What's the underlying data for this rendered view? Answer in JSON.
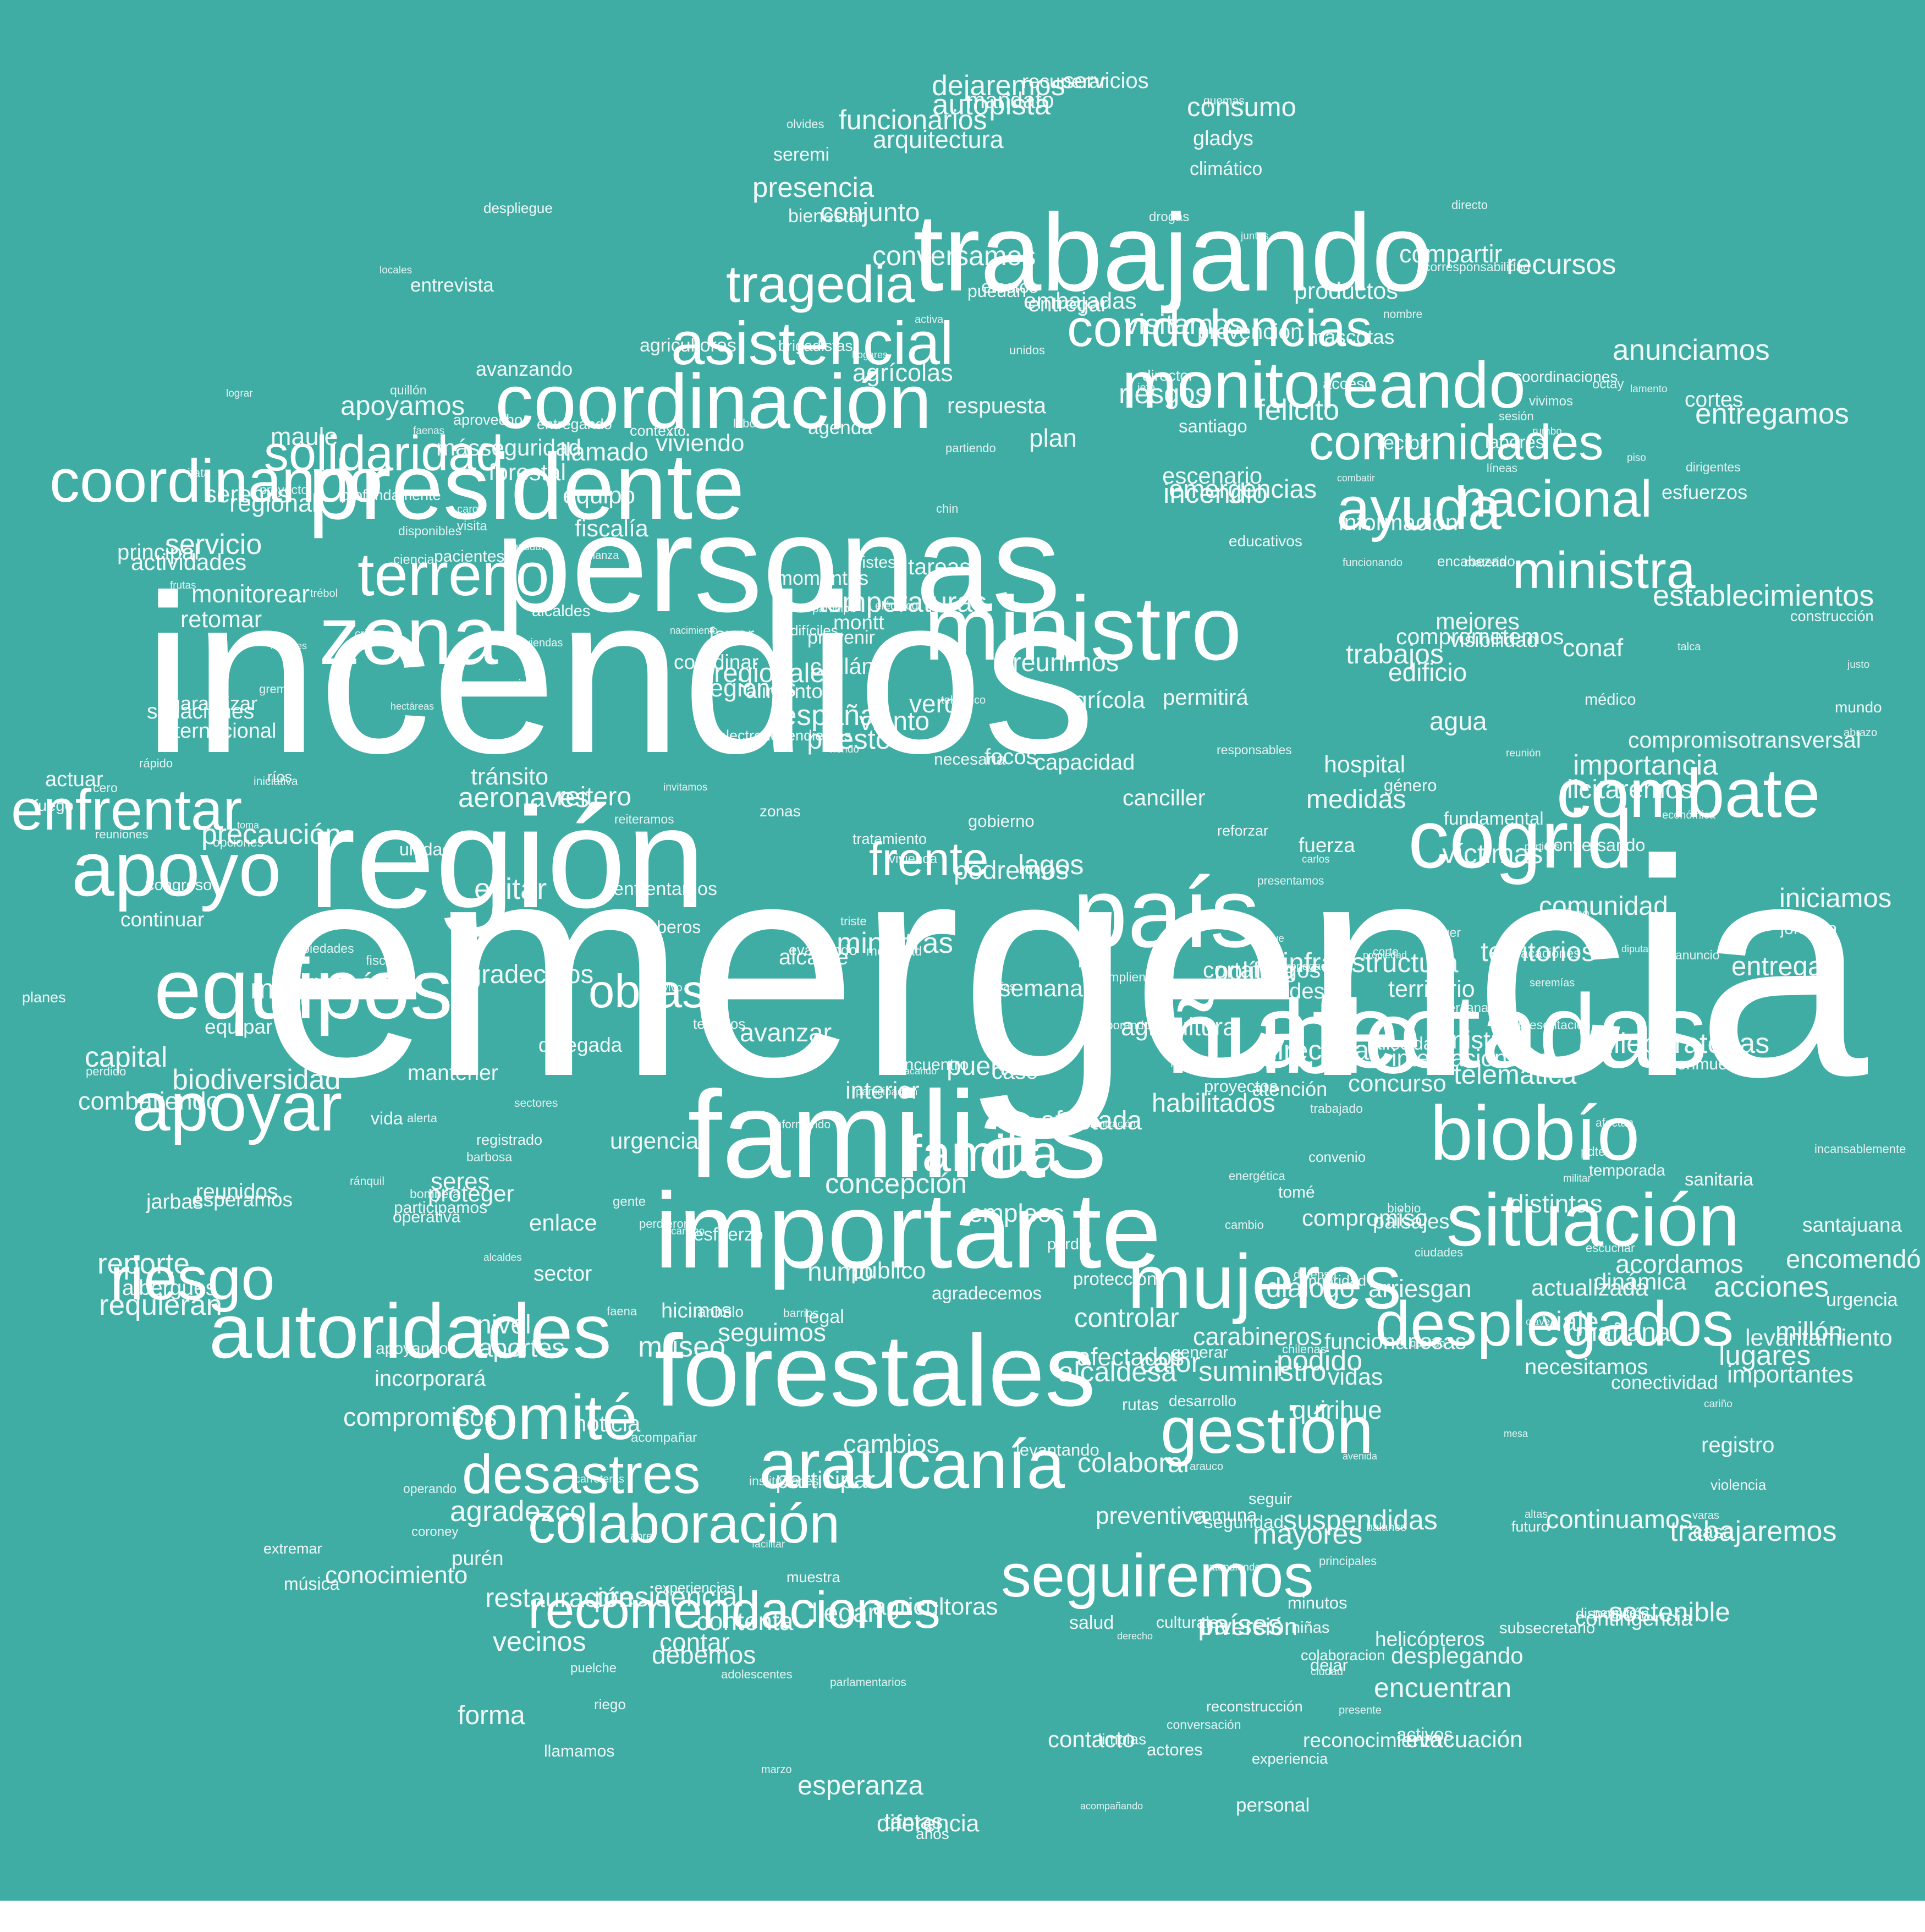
{
  "background_color": "#40ada5",
  "word_color": "#ffffff",
  "words": {
    "big": [
      "emergencia",
      "incendios",
      "personas",
      "región",
      "trabajando",
      "familias",
      "importante",
      "forestales",
      "afectadas",
      "ñuble",
      "país",
      "presidente",
      "ministro",
      "zona",
      "cogrid",
      "equipos",
      "apoyo",
      "autoridades",
      "coordinación",
      "mujeres",
      "situación",
      "biobío",
      "combate",
      "araucanía",
      "gestión",
      "comité",
      "desplegados",
      "seguiremos",
      "apoyar",
      "riesgo",
      "colaboración",
      "recomendaciones",
      "desastres",
      "terreno",
      "asistencial",
      "tragedia",
      "monitoreando",
      "condolencias",
      "comunidades",
      "nacional",
      "ministra",
      "coordinando",
      "enfrentar",
      "familia",
      "obras",
      "frente",
      "ayuda",
      "solidaridad"
    ],
    "medium": [
      "llamado",
      "reunimos",
      "ministros",
      "seguridad",
      "seguimos",
      "albergues",
      "maquinaria",
      "compromiso",
      "regionales",
      "agricultores",
      "temperaturas",
      "alcaldesa",
      "actividades",
      "gobierno",
      "regiones",
      "centro",
      "momentos",
      "chillán",
      "incendio",
      "agricultoras",
      "necesidades",
      "reconocimiento",
      "información",
      "coordinar",
      "subsecretario",
      "brigadistas",
      "prevención",
      "visitamos",
      "encabezado",
      "despliegue",
      "emergencias",
      "agradecemos",
      "esfuerzos",
      "dejaremos",
      "reconstrucción",
      "entregamos",
      "protección",
      "másseguridad",
      "funcionariosas",
      "colaboracion",
      "fundamental",
      "helicópteros",
      "aeronaves",
      "agrícola",
      "edificio",
      "agenda",
      "países",
      "operativa",
      "puerto",
      "jornada",
      "agrícolas",
      "caso",
      "agua",
      "plan",
      "equipo",
      "conjunto",
      "acciones",
      "calor",
      "actores",
      "maule",
      "evitar",
      "humo",
      "zonas",
      "agradezco",
      "puedan",
      "director",
      "enlace",
      "años",
      "difíciles",
      "fuego",
      "forma",
      "víctimas",
      "atención",
      "alcalde",
      "afectados",
      "suministro",
      "ministras",
      "mundo",
      "contar",
      "labores",
      "recursos",
      "distintas",
      "lagos",
      "salud",
      "fuerza",
      "vida",
      "casa",
      "niñas",
      "riego",
      "ríos",
      "dejar",
      "acceso",
      "consumo",
      "rutas",
      "museo",
      "afectada",
      "vidas",
      "escenario",
      "forestal",
      "comuna",
      "medidas",
      "seguir",
      "entrega",
      "llegar",
      "encuentran",
      "apoyando",
      "servicio",
      "entregando",
      "encuentro",
      "bomberos",
      "reunidos",
      "necesitamos",
      "hospital",
      "levantamiento",
      "coordinaciones",
      "paisajes",
      "capacidad",
      "garantizar",
      "participamos",
      "disposición",
      "visibilidad",
      "violencia",
      "reforzar",
      "compromisos",
      "restauración",
      "enfrentamos",
      "vecinos",
      "infraestructura",
      "continuamos",
      "urgencia",
      "trabajos",
      "conocimiento",
      "comunidad",
      "aprovecho",
      "preventiva",
      "sostenible",
      "mantener",
      "avanzar",
      "focos",
      "nivel",
      "fiscalía",
      "contacto",
      "urgencias",
      "proyectos",
      "entrevista",
      "inversión",
      "alimentos",
      "continuar",
      "esperamos",
      "conversamos",
      "alcaldes",
      "unidad",
      "habilitados",
      "territorios",
      "productos",
      "desplegando",
      "establecimientos",
      "presidencial",
      "fallecidas",
      "levantando",
      "actualizada",
      "construcción",
      "territorio",
      "prioridad",
      "dinámica",
      "proteger",
      "funcionarios",
      "personal",
      "evacuación",
      "santiago",
      "tratamiento",
      "colaborar",
      "retomar",
      "prevenir",
      "internacional",
      "cortafuegos",
      "concepción",
      "iniciamos",
      "santajuana",
      "climático",
      "regional",
      "pacientes",
      "mejores",
      "tareas",
      "mañana",
      "desarrollo",
      "reitero",
      "tomé",
      "generar",
      "hicimos",
      "tantas",
      "perdió",
      "apoyamos",
      "entregar",
      "mandato",
      "conversando",
      "jarbas",
      "extremar",
      "lugares",
      "diálogo",
      "sector",
      "efectos",
      "esfuerzo",
      "aportes",
      "minutos",
      "delegada",
      "canciller",
      "españa",
      "activos",
      "concurso",
      "cortes",
      "cambios",
      "convenio",
      "noticia",
      "capital",
      "directora",
      "anhelo",
      "bienestar",
      "favor",
      "actuar",
      "futuro",
      "interior",
      "seremi",
      "felicito",
      "conmueve",
      "legal",
      "montt",
      "seres",
      "arriesgan",
      "limpias",
      "avanzando",
      "contexto",
      "ramón",
      "recordar",
      "podido",
      "mascotas",
      "tristes",
      "participar",
      "suspendidas",
      "recuperar",
      "encomendó",
      "licitaremos",
      "terrenos",
      "servicios",
      "necesaria",
      "respuesta",
      "telemática",
      "acordamos",
      "importancia",
      "electrodependientes",
      "combatiendo",
      "requieran",
      "trabajaremos",
      "internacionales",
      "situaciones",
      "semana",
      "política",
      "experiencias",
      "reporte",
      "público",
      "muestra",
      "contingencia",
      "viviendo",
      "monitorear",
      "biodiversidad",
      "registrado",
      "sanitaria",
      "permitirá",
      "esperanza",
      "principal",
      "embajadas",
      "tránsito",
      "médico",
      "profundamente",
      "importantes",
      "culturales",
      "viento",
      "experiencia",
      "temporada",
      "podremos",
      "educativos",
      "precaución",
      "mayores",
      "conectividad",
      "quirihue",
      "empleos",
      "riesgos",
      "recibir",
      "música",
      "contenta",
      "compartir",
      "género",
      "diferencia",
      "gladys",
      "seremis",
      "llamamos",
      "purén",
      "puesto",
      "carabineros",
      "debemos",
      "planes",
      "verde",
      "autopista",
      "registro",
      "agricultura",
      "conaf",
      "millón",
      "viaje",
      "equipar",
      "comprometemos",
      "arquitectura",
      "congreso",
      "controlar",
      "presencia",
      "chileparatodas",
      "incorporará",
      "anunciamos",
      "evaluando",
      "agradecidos",
      "compromisotransversal"
    ],
    "small": [
      "vacaciones",
      "presentamos",
      "nacimiento",
      "teleférico",
      "representación",
      "proyecto",
      "sectores",
      "propagación",
      "iniciativa",
      "corresponsabilidad",
      "informando",
      "destacando",
      "parlamentarios",
      "propiedad",
      "vivienda",
      "viendo",
      "opciones",
      "disponibles",
      "conversación",
      "económica",
      "partiendo",
      "responsables",
      "acompañando",
      "escuchar",
      "reiteramos",
      "incansablemente",
      "sesión",
      "adolescentes",
      "dirigentes",
      "principales",
      "descarbonización",
      "unidos",
      "quemas",
      "viviendas",
      "cumpliendo",
      "movilidad",
      "atendiendo",
      "reunión",
      "colaborando",
      "instituciones",
      "trabajado",
      "propiedades",
      "funcionando",
      "seremías",
      "energética",
      "puelche",
      "coroney",
      "lamento",
      "gremios",
      "diputado",
      "reuniones",
      "participé",
      "combatir",
      "presente",
      "hectáreas",
      "participación",
      "operando",
      "olvides",
      "visita",
      "derecho",
      "ciudades",
      "recoger",
      "millones",
      "bombera",
      "eléctrico",
      "carreteras",
      "invitamos",
      "ciencia",
      "hora",
      "drogas",
      "materia",
      "balance",
      "acompañar",
      "talca",
      "toma",
      "permite",
      "perdieron",
      "rumbo",
      "vivimos",
      "triste",
      "rápido",
      "faena",
      "quillón",
      "hogares",
      "cargo",
      "chilenas",
      "ayudar",
      "juntos",
      "perdido",
      "ránquil",
      "locales",
      "cercanas",
      "querido",
      "faenas",
      "facilitar",
      "barrios",
      "alianza",
      "alerta",
      "mesa",
      "lograr",
      "cariño",
      "defensa",
      "aéreo",
      "trébol",
      "vivo",
      "frutas",
      "nombre",
      "piso",
      "justo",
      "activa",
      "albergue",
      "siguen",
      "partidos",
      "directo",
      "clave",
      "carlos",
      "varas",
      "corte",
      "avenida",
      "octay",
      "ciudad",
      "gente",
      "militar",
      "chin",
      "vías",
      "cero",
      "altas",
      "abre",
      "itata",
      "arauco",
      "jefe",
      "afectan",
      "marzo",
      "fiscal",
      "anuncio",
      "barbosa",
      "labor",
      "abrazo",
      "crisis",
      "pdte",
      "cambio",
      "camino",
      "alcaldes",
      "biobio",
      "líneas"
    ]
  }
}
